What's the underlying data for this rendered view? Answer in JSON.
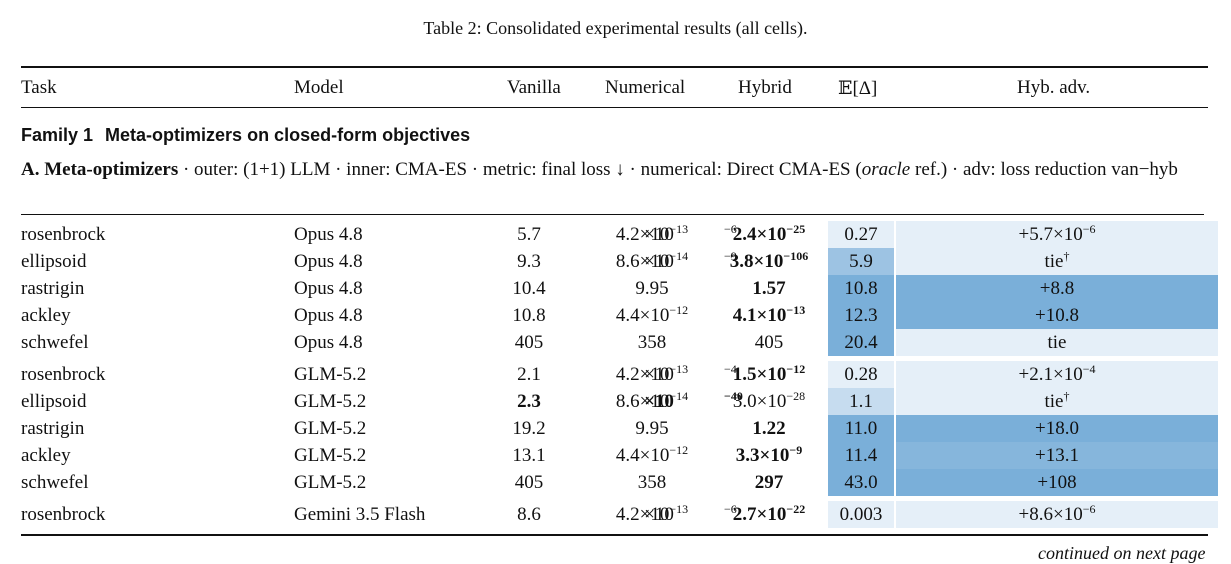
{
  "caption": "Table 2:  Consolidated experimental results (all cells).",
  "headers": {
    "task": "Task",
    "model": "Model",
    "vanilla": "Vanilla",
    "numerical": "Numerical",
    "hybrid": "Hybrid",
    "expect": "𝔼[Δ]",
    "advantage": "Hyb. adv."
  },
  "family": {
    "label": "Family 1",
    "title": "Meta-optimizers on closed-form objectives"
  },
  "section": {
    "label": "A. Meta-optimizers",
    "text1": " · outer:  (1+1) LLM · inner:  CMA-ES · metric:  final loss ↓ · numerical:  Direct CMA-ES (",
    "oracle": "oracle",
    "text2": " ref.) · adv:  loss reduction van−hyb"
  },
  "colors": {
    "light": "#e5eff8",
    "l2": "#c6dcef",
    "l3": "#9dc3e3",
    "l4": "#86b6dc",
    "dark": "#7aafd9"
  },
  "rows": [
    {
      "task": "rosenbrock",
      "model": "Opus 4.8",
      "van": {
        "m": "5.7",
        "e": "−6"
      },
      "num": {
        "m": "4.2",
        "e": "−13"
      },
      "hyb": {
        "m": "2.4",
        "e": "−25"
      },
      "best": "hyb",
      "ed": "0.27",
      "adv": {
        "pre": "+",
        "m": "5.7",
        "e": "−6"
      },
      "edc": "light",
      "advc": "light"
    },
    {
      "task": "ellipsoid",
      "model": "Opus 4.8",
      "van": {
        "m": "9.3",
        "e": "−9"
      },
      "num": {
        "m": "8.6",
        "e": "−14"
      },
      "hyb": {
        "m": "3.8",
        "e": "−106"
      },
      "best": "hyb",
      "ed": "5.9",
      "adv": {
        "txt": "tie",
        "dag": "†"
      },
      "edc": "l3",
      "advc": "light"
    },
    {
      "task": "rastrigin",
      "model": "Opus 4.8",
      "van": {
        "v": "10.4"
      },
      "num": {
        "v": "9.95"
      },
      "hyb": {
        "v": "1.57"
      },
      "best": "hyb",
      "ed": "10.8",
      "adv": {
        "txt": "+8.8"
      },
      "edc": "dark",
      "advc": "dark"
    },
    {
      "task": "ackley",
      "model": "Opus 4.8",
      "van": {
        "v": "10.8"
      },
      "num": {
        "m": "4.4",
        "e": "−12"
      },
      "hyb": {
        "m": "4.1",
        "e": "−13"
      },
      "best": "hyb",
      "ed": "12.3",
      "adv": {
        "txt": "+10.8"
      },
      "edc": "dark",
      "advc": "dark"
    },
    {
      "task": "schwefel",
      "model": "Opus 4.8",
      "van": {
        "v": "405"
      },
      "num": {
        "v": "358"
      },
      "hyb": {
        "v": "405"
      },
      "best": "none",
      "ed": "20.4",
      "adv": {
        "txt": "tie"
      },
      "edc": "dark",
      "advc": "light"
    },
    {
      "gap": true
    },
    {
      "task": "rosenbrock",
      "model": "GLM-5.2",
      "van": {
        "m": "2.1",
        "e": "−4"
      },
      "num": {
        "m": "4.2",
        "e": "−13"
      },
      "hyb": {
        "m": "1.5",
        "e": "−12"
      },
      "best": "hyb",
      "ed": "0.28",
      "adv": {
        "pre": "+",
        "m": "2.1",
        "e": "−4"
      },
      "edc": "light",
      "advc": "light"
    },
    {
      "task": "ellipsoid",
      "model": "GLM-5.2",
      "van": {
        "m": "2.3",
        "e": "−40"
      },
      "num": {
        "m": "8.6",
        "e": "−14"
      },
      "hyb": {
        "m": "3.0",
        "e": "−28"
      },
      "best": "van",
      "ed": "1.1",
      "adv": {
        "txt": "tie",
        "dag": "†"
      },
      "edc": "l2",
      "advc": "light"
    },
    {
      "task": "rastrigin",
      "model": "GLM-5.2",
      "van": {
        "v": "19.2"
      },
      "num": {
        "v": "9.95"
      },
      "hyb": {
        "v": "1.22"
      },
      "best": "hyb",
      "ed": "11.0",
      "adv": {
        "txt": "+18.0"
      },
      "edc": "dark",
      "advc": "dark"
    },
    {
      "task": "ackley",
      "model": "GLM-5.2",
      "van": {
        "v": "13.1"
      },
      "num": {
        "m": "4.4",
        "e": "−12"
      },
      "hyb": {
        "m": "3.3",
        "e": "−9"
      },
      "best": "hyb",
      "ed": "11.4",
      "adv": {
        "txt": "+13.1"
      },
      "edc": "dark",
      "advc": "l4"
    },
    {
      "task": "schwefel",
      "model": "GLM-5.2",
      "van": {
        "v": "405"
      },
      "num": {
        "v": "358"
      },
      "hyb": {
        "v": "297"
      },
      "best": "hyb",
      "ed": "43.0",
      "adv": {
        "txt": "+108"
      },
      "edc": "dark",
      "advc": "dark"
    },
    {
      "gap": true
    },
    {
      "task": "rosenbrock",
      "model": "Gemini 3.5 Flash",
      "van": {
        "m": "8.6",
        "e": "−6"
      },
      "num": {
        "m": "4.2",
        "e": "−13"
      },
      "hyb": {
        "m": "2.7",
        "e": "−22"
      },
      "best": "hyb",
      "ed": "0.003",
      "adv": {
        "pre": "+",
        "m": "8.6",
        "e": "−6"
      },
      "edc": "light",
      "advc": "light"
    }
  ],
  "footer": "continued on next page"
}
